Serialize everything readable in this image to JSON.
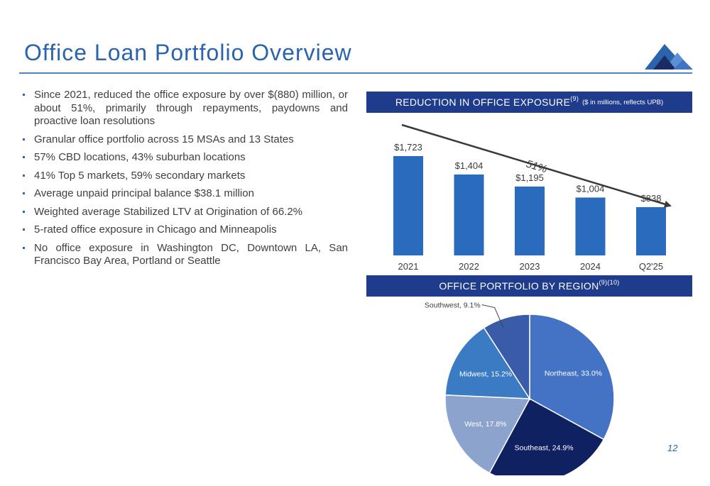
{
  "title": "Office Loan Portfolio Overview",
  "page_number": "12",
  "colors": {
    "brand": "#2a64ad",
    "banner": "#1f3b8c",
    "bar": "#2a6bbd"
  },
  "bullets": [
    "Since 2021, reduced the office exposure by over $(880) million, or about 51%, primarily through repayments, paydowns and proactive loan resolutions",
    "Granular office portfolio across 15 MSAs and 13 States",
    "57% CBD locations, 43% suburban locations",
    "41% Top 5 markets, 59% secondary markets",
    "Average unpaid principal balance $38.1 million",
    "Weighted average Stabilized LTV at Origination of 66.2%",
    "5-rated office exposure in Chicago and Minneapolis",
    "No office exposure in Washington DC, Downtown LA, San Francisco Bay Area, Portland or Seattle"
  ],
  "banner1": {
    "main": "REDUCTION IN OFFICE EXPOSURE",
    "sup": "(9)",
    "note": "($ in millions, reflects UPB)"
  },
  "banner2": {
    "main": "OFFICE PORTFOLIO BY REGION",
    "sup": "(9)(10)"
  },
  "chart_data": [
    {
      "type": "bar",
      "categories": [
        "2021",
        "2022",
        "2023",
        "2024",
        "Q2'25"
      ],
      "values": [
        1723,
        1404,
        1195,
        1004,
        838
      ],
      "data_labels": [
        "$1,723",
        "$1,404",
        "$1,195",
        "$1,004",
        "$838"
      ],
      "annotation": "51%",
      "ylim": [
        0,
        1723
      ],
      "grid": false
    },
    {
      "type": "pie",
      "slices": [
        {
          "label": "Northeast, 33.0%",
          "value": 33.0,
          "color": "#4472c4"
        },
        {
          "label": "Southeast, 24.9%",
          "value": 24.9,
          "color": "#0f2161"
        },
        {
          "label": "West, 17.8%",
          "value": 17.8,
          "color": "#8ba3cd"
        },
        {
          "label": "Midwest, 15.2%",
          "value": 15.2,
          "color": "#3a7bc3"
        },
        {
          "label": "Southwest, 9.1%",
          "value": 9.1,
          "color": "#395ba8"
        }
      ]
    }
  ]
}
